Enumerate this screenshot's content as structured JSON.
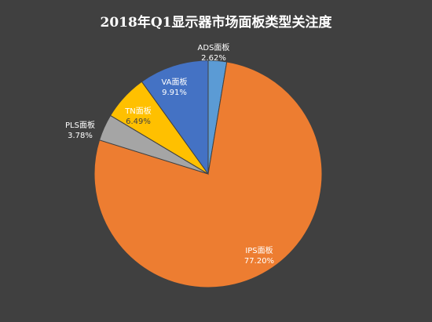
{
  "chart_data": {
    "type": "pie",
    "title": "2018年Q1显示器市场面板类型关注度",
    "categories": [
      "ADS面板",
      "IPS面板",
      "PLS面板",
      "TN面板",
      "VA面板"
    ],
    "values": [
      2.62,
      77.2,
      3.78,
      6.49,
      9.91
    ],
    "value_labels": [
      "2.62%",
      "77.20%",
      "3.78%",
      "6.49%",
      "9.91%"
    ],
    "colors": [
      "#5b9bd5",
      "#ed7d31",
      "#a5a5a5",
      "#ffc000",
      "#4472c4"
    ],
    "start": "12 o'clock, clockwise",
    "legend": "none",
    "background": "#404040"
  }
}
